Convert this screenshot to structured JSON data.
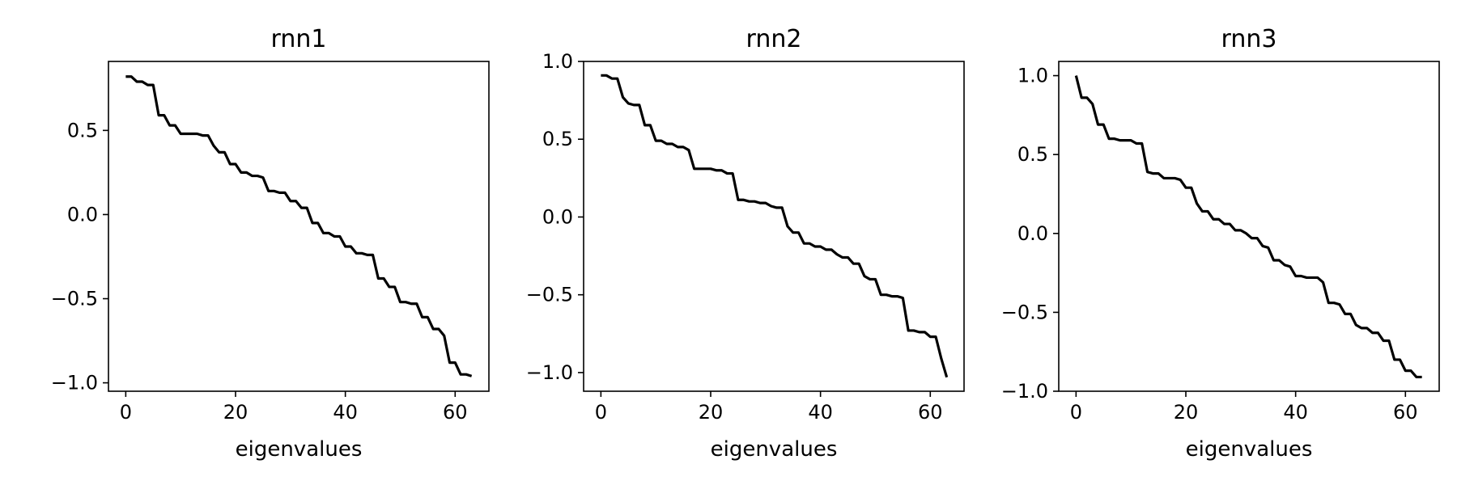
{
  "chart_data": [
    {
      "type": "line",
      "title": "rnn1",
      "xlabel": "eigenvalues",
      "ylabel": "",
      "xlim": [
        -3.15,
        66.15
      ],
      "ylim": [
        -1.05,
        0.91
      ],
      "xticks": [
        0,
        20,
        40,
        60
      ],
      "yticks": [
        0.5,
        0.0,
        -0.5,
        -1.0
      ],
      "xtick_labels": [
        "0",
        "20",
        "40",
        "60"
      ],
      "ytick_labels": [
        "0.5",
        "0.0",
        "−0.5",
        "−1.0"
      ],
      "grid": false,
      "color": "#000000",
      "series": [
        {
          "x": [
            0,
            1,
            2,
            3,
            4,
            5,
            6,
            7,
            8,
            9,
            10,
            11,
            12,
            13,
            14,
            15,
            16,
            17,
            18,
            19,
            20,
            21,
            22,
            23,
            24,
            25,
            26,
            27,
            28,
            29,
            30,
            31,
            32,
            33,
            34,
            35,
            36,
            37,
            38,
            39,
            40,
            41,
            42,
            43,
            44,
            45,
            46,
            47,
            48,
            49,
            50,
            51,
            52,
            53,
            54,
            55,
            56,
            57,
            58,
            59,
            60,
            61,
            62,
            63
          ],
          "y": [
            0.82,
            0.82,
            0.79,
            0.79,
            0.77,
            0.77,
            0.59,
            0.59,
            0.53,
            0.53,
            0.48,
            0.48,
            0.48,
            0.48,
            0.47,
            0.47,
            0.41,
            0.37,
            0.37,
            0.3,
            0.3,
            0.25,
            0.25,
            0.23,
            0.23,
            0.22,
            0.14,
            0.14,
            0.13,
            0.13,
            0.08,
            0.08,
            0.04,
            0.04,
            -0.05,
            -0.05,
            -0.11,
            -0.11,
            -0.13,
            -0.13,
            -0.19,
            -0.19,
            -0.23,
            -0.23,
            -0.24,
            -0.24,
            -0.38,
            -0.38,
            -0.43,
            -0.43,
            -0.52,
            -0.52,
            -0.53,
            -0.53,
            -0.61,
            -0.61,
            -0.68,
            -0.68,
            -0.72,
            -0.88,
            -0.88,
            -0.95,
            -0.95,
            -0.96
          ]
        }
      ]
    },
    {
      "type": "line",
      "title": "rnn2",
      "xlabel": "eigenvalues",
      "ylabel": "",
      "xlim": [
        -3.15,
        66.15
      ],
      "ylim": [
        -1.12,
        1.0
      ],
      "xticks": [
        0,
        20,
        40,
        60
      ],
      "yticks": [
        1.0,
        0.5,
        0.0,
        -0.5,
        -1.0
      ],
      "xtick_labels": [
        "0",
        "20",
        "40",
        "60"
      ],
      "ytick_labels": [
        "1.0",
        "0.5",
        "0.0",
        "−0.5",
        "−1.0"
      ],
      "grid": false,
      "color": "#000000",
      "series": [
        {
          "x": [
            0,
            1,
            2,
            3,
            4,
            5,
            6,
            7,
            8,
            9,
            10,
            11,
            12,
            13,
            14,
            15,
            16,
            17,
            18,
            19,
            20,
            21,
            22,
            23,
            24,
            25,
            26,
            27,
            28,
            29,
            30,
            31,
            32,
            33,
            34,
            35,
            36,
            37,
            38,
            39,
            40,
            41,
            42,
            43,
            44,
            45,
            46,
            47,
            48,
            49,
            50,
            51,
            52,
            53,
            54,
            55,
            56,
            57,
            58,
            59,
            60,
            61,
            62,
            63
          ],
          "y": [
            0.91,
            0.91,
            0.89,
            0.89,
            0.77,
            0.73,
            0.72,
            0.72,
            0.59,
            0.59,
            0.49,
            0.49,
            0.47,
            0.47,
            0.45,
            0.45,
            0.43,
            0.31,
            0.31,
            0.31,
            0.31,
            0.3,
            0.3,
            0.28,
            0.28,
            0.11,
            0.11,
            0.1,
            0.1,
            0.09,
            0.09,
            0.07,
            0.06,
            0.06,
            -0.06,
            -0.1,
            -0.1,
            -0.17,
            -0.17,
            -0.19,
            -0.19,
            -0.21,
            -0.21,
            -0.24,
            -0.26,
            -0.26,
            -0.3,
            -0.3,
            -0.38,
            -0.4,
            -0.4,
            -0.5,
            -0.5,
            -0.51,
            -0.51,
            -0.52,
            -0.73,
            -0.73,
            -0.74,
            -0.74,
            -0.77,
            -0.77,
            -0.91,
            -1.03
          ]
        }
      ]
    },
    {
      "type": "line",
      "title": "rnn3",
      "xlabel": "eigenvalues",
      "ylabel": "",
      "xlim": [
        -3.15,
        66.15
      ],
      "ylim": [
        -1.0,
        1.09
      ],
      "xticks": [
        0,
        20,
        40,
        60
      ],
      "yticks": [
        1.0,
        0.5,
        0.0,
        -0.5,
        -1.0
      ],
      "xtick_labels": [
        "0",
        "20",
        "40",
        "60"
      ],
      "ytick_labels": [
        "1.0",
        "0.5",
        "0.0",
        "−0.5",
        "−1.0"
      ],
      "grid": false,
      "color": "#000000",
      "series": [
        {
          "x": [
            0,
            1,
            2,
            3,
            4,
            5,
            6,
            7,
            8,
            9,
            10,
            11,
            12,
            13,
            14,
            15,
            16,
            17,
            18,
            19,
            20,
            21,
            22,
            23,
            24,
            25,
            26,
            27,
            28,
            29,
            30,
            31,
            32,
            33,
            34,
            35,
            36,
            37,
            38,
            39,
            40,
            41,
            42,
            43,
            44,
            45,
            46,
            47,
            48,
            49,
            50,
            51,
            52,
            53,
            54,
            55,
            56,
            57,
            58,
            59,
            60,
            61,
            62,
            63
          ],
          "y": [
            1.0,
            0.86,
            0.86,
            0.82,
            0.69,
            0.69,
            0.6,
            0.6,
            0.59,
            0.59,
            0.59,
            0.57,
            0.57,
            0.39,
            0.38,
            0.38,
            0.35,
            0.35,
            0.35,
            0.34,
            0.29,
            0.29,
            0.19,
            0.14,
            0.14,
            0.09,
            0.09,
            0.06,
            0.06,
            0.02,
            0.02,
            0.0,
            -0.03,
            -0.03,
            -0.08,
            -0.09,
            -0.17,
            -0.17,
            -0.2,
            -0.21,
            -0.27,
            -0.27,
            -0.28,
            -0.28,
            -0.28,
            -0.31,
            -0.44,
            -0.44,
            -0.45,
            -0.51,
            -0.51,
            -0.58,
            -0.6,
            -0.6,
            -0.63,
            -0.63,
            -0.68,
            -0.68,
            -0.8,
            -0.8,
            -0.87,
            -0.87,
            -0.91,
            -0.91
          ]
        }
      ]
    }
  ]
}
